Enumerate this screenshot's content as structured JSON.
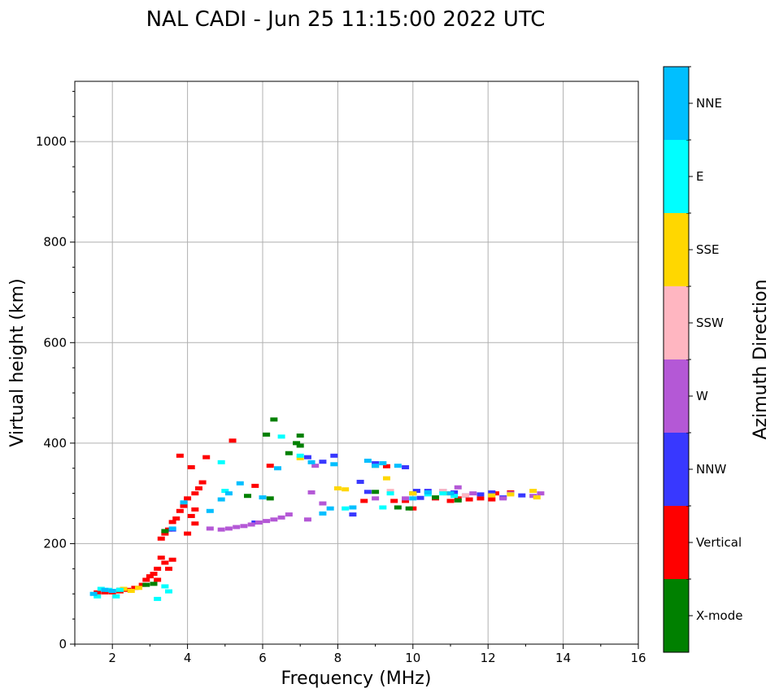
{
  "chart_data": {
    "type": "scatter",
    "title": "NAL CADI - Jun 25 11:15:00 2022 UTC",
    "xlabel": "Frequency (MHz)",
    "ylabel": "Virtual height (km)",
    "xlim": [
      1,
      16
    ],
    "ylim": [
      0,
      1120
    ],
    "xticks": [
      2,
      4,
      6,
      8,
      10,
      12,
      14,
      16
    ],
    "yticks": [
      0,
      200,
      400,
      600,
      800,
      1000
    ],
    "grid": true,
    "colorbar": {
      "label": "Azimuth Direction",
      "categories": [
        {
          "name": "X-mode",
          "color": "#008000"
        },
        {
          "name": "Vertical",
          "color": "#ff0000"
        },
        {
          "name": "NNW",
          "color": "#3838ff"
        },
        {
          "name": "W",
          "color": "#b458d6"
        },
        {
          "name": "SSW",
          "color": "#ffb6c1"
        },
        {
          "name": "SSE",
          "color": "#ffd700"
        },
        {
          "name": "E",
          "color": "#00ffff"
        },
        {
          "name": "NNE",
          "color": "#00bfff"
        }
      ]
    },
    "series": [
      {
        "name": "Vertical",
        "color": "#ff0000",
        "points": [
          [
            1.6,
            103
          ],
          [
            1.8,
            103
          ],
          [
            2.0,
            103
          ],
          [
            2.2,
            105
          ],
          [
            2.4,
            108
          ],
          [
            2.6,
            112
          ],
          [
            2.8,
            118
          ],
          [
            2.9,
            128
          ],
          [
            3.0,
            135
          ],
          [
            3.1,
            140
          ],
          [
            3.2,
            128
          ],
          [
            3.2,
            150
          ],
          [
            3.3,
            172
          ],
          [
            3.4,
            162
          ],
          [
            3.5,
            150
          ],
          [
            3.6,
            168
          ],
          [
            3.3,
            210
          ],
          [
            3.4,
            220
          ],
          [
            3.5,
            228
          ],
          [
            3.6,
            243
          ],
          [
            3.7,
            250
          ],
          [
            3.8,
            265
          ],
          [
            3.9,
            275
          ],
          [
            4.0,
            220
          ],
          [
            4.0,
            290
          ],
          [
            4.1,
            255
          ],
          [
            4.2,
            268
          ],
          [
            4.2,
            240
          ],
          [
            4.3,
            310
          ],
          [
            4.4,
            322
          ],
          [
            4.5,
            372
          ],
          [
            4.1,
            352
          ],
          [
            3.8,
            375
          ],
          [
            4.2,
            300
          ],
          [
            5.2,
            405
          ],
          [
            5.8,
            315
          ],
          [
            6.2,
            355
          ],
          [
            8.7,
            285
          ],
          [
            9.5,
            285
          ],
          [
            10.0,
            270
          ],
          [
            10.6,
            290
          ],
          [
            11.0,
            285
          ],
          [
            11.2,
            290
          ],
          [
            11.5,
            288
          ],
          [
            11.8,
            290
          ],
          [
            12.1,
            288
          ],
          [
            12.6,
            302
          ],
          [
            12.2,
            300
          ],
          [
            9.8,
            285
          ],
          [
            9.3,
            354
          ]
        ]
      },
      {
        "name": "X-mode",
        "color": "#008000",
        "points": [
          [
            2.2,
            108
          ],
          [
            2.9,
            118
          ],
          [
            3.1,
            120
          ],
          [
            3.4,
            225
          ],
          [
            5.6,
            295
          ],
          [
            6.2,
            290
          ],
          [
            6.3,
            447
          ],
          [
            6.1,
            417
          ],
          [
            6.7,
            380
          ],
          [
            7.0,
            415
          ],
          [
            7.0,
            395
          ],
          [
            6.9,
            400
          ],
          [
            9.0,
            303
          ],
          [
            9.0,
            355
          ],
          [
            9.6,
            272
          ],
          [
            9.9,
            270
          ],
          [
            10.0,
            300
          ],
          [
            10.6,
            292
          ],
          [
            11.4,
            296
          ],
          [
            11.2,
            286
          ]
        ]
      },
      {
        "name": "NNW",
        "color": "#3838ff",
        "points": [
          [
            3.6,
            228
          ],
          [
            5.8,
            242
          ],
          [
            7.2,
            372
          ],
          [
            7.6,
            363
          ],
          [
            7.9,
            375
          ],
          [
            8.6,
            323
          ],
          [
            8.4,
            258
          ],
          [
            9.0,
            360
          ],
          [
            9.8,
            352
          ],
          [
            10.1,
            305
          ],
          [
            10.2,
            291
          ],
          [
            10.4,
            305
          ],
          [
            10.8,
            305
          ],
          [
            11.1,
            302
          ],
          [
            11.4,
            296
          ],
          [
            11.8,
            298
          ],
          [
            12.1,
            302
          ],
          [
            12.4,
            292
          ],
          [
            12.9,
            296
          ],
          [
            8.8,
            303
          ]
        ]
      },
      {
        "name": "W",
        "color": "#b458d6",
        "points": [
          [
            4.6,
            230
          ],
          [
            4.9,
            228
          ],
          [
            5.1,
            230
          ],
          [
            5.3,
            233
          ],
          [
            5.5,
            235
          ],
          [
            5.7,
            238
          ],
          [
            5.9,
            242
          ],
          [
            6.1,
            245
          ],
          [
            6.3,
            248
          ],
          [
            6.5,
            252
          ],
          [
            6.7,
            258
          ],
          [
            7.2,
            248
          ],
          [
            7.4,
            355
          ],
          [
            7.3,
            302
          ],
          [
            9.0,
            290
          ],
          [
            9.8,
            290
          ],
          [
            11.2,
            312
          ],
          [
            11.6,
            300
          ],
          [
            12.4,
            290
          ],
          [
            12.6,
            300
          ],
          [
            13.2,
            295
          ],
          [
            13.4,
            300
          ],
          [
            7.6,
            280
          ]
        ]
      },
      {
        "name": "SSW",
        "color": "#ffb6c1",
        "points": [
          [
            9.4,
            305
          ],
          [
            10.8,
            305
          ],
          [
            11.4,
            296
          ]
        ]
      },
      {
        "name": "SSE",
        "color": "#ffd700",
        "points": [
          [
            2.3,
            110
          ],
          [
            2.5,
            106
          ],
          [
            2.7,
            112
          ],
          [
            7.0,
            370
          ],
          [
            8.0,
            310
          ],
          [
            8.2,
            308
          ],
          [
            9.3,
            330
          ],
          [
            10.0,
            300
          ],
          [
            10.9,
            300
          ],
          [
            12.1,
            296
          ],
          [
            12.6,
            298
          ],
          [
            13.2,
            305
          ],
          [
            13.3,
            292
          ]
        ]
      },
      {
        "name": "E",
        "color": "#00ffff",
        "points": [
          [
            1.6,
            95
          ],
          [
            1.7,
            110
          ],
          [
            1.9,
            108
          ],
          [
            2.1,
            95
          ],
          [
            2.2,
            108
          ],
          [
            3.2,
            90
          ],
          [
            3.4,
            115
          ],
          [
            3.5,
            105
          ],
          [
            4.9,
            362
          ],
          [
            5.0,
            305
          ],
          [
            6.5,
            413
          ],
          [
            7.0,
            375
          ],
          [
            8.2,
            270
          ],
          [
            9.2,
            272
          ],
          [
            9.4,
            300
          ],
          [
            10.4,
            298
          ],
          [
            10.8,
            300
          ],
          [
            11.1,
            295
          ]
        ]
      },
      {
        "name": "NNE",
        "color": "#00bfff",
        "points": [
          [
            1.5,
            100
          ],
          [
            1.8,
            108
          ],
          [
            2.0,
            106
          ],
          [
            3.6,
            230
          ],
          [
            3.9,
            282
          ],
          [
            4.6,
            265
          ],
          [
            4.9,
            288
          ],
          [
            5.1,
            300
          ],
          [
            5.4,
            320
          ],
          [
            6.0,
            292
          ],
          [
            6.4,
            350
          ],
          [
            7.3,
            362
          ],
          [
            7.6,
            260
          ],
          [
            7.8,
            270
          ],
          [
            7.9,
            358
          ],
          [
            8.4,
            272
          ],
          [
            8.8,
            365
          ],
          [
            9.0,
            355
          ],
          [
            9.2,
            360
          ],
          [
            9.6,
            355
          ],
          [
            10.0,
            290
          ],
          [
            10.4,
            302
          ],
          [
            11.0,
            300
          ]
        ]
      }
    ]
  }
}
